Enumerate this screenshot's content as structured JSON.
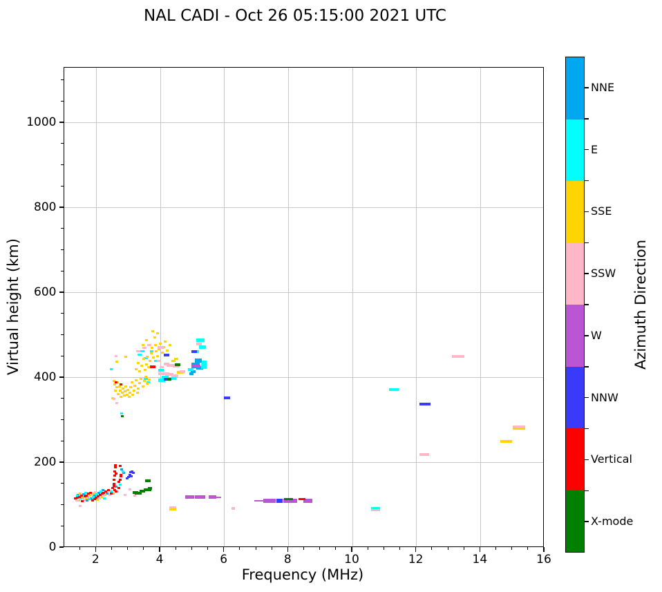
{
  "chart_data": {
    "type": "scatter",
    "title": "NAL CADI - Oct 26 05:15:00 2021 UTC",
    "xlabel": "Frequency (MHz)",
    "ylabel": "Virtual height (km)",
    "xlim": [
      1,
      16
    ],
    "ylim": [
      0,
      1130
    ],
    "xticks": [
      2,
      4,
      6,
      8,
      10,
      12,
      14,
      16
    ],
    "yticks": [
      0,
      200,
      400,
      600,
      800,
      1000
    ],
    "x_minor_step": 0.5,
    "y_minor_step": 50,
    "grid": true,
    "grid_color": "#c6c6c6",
    "point_format": "[freq_MHz, height_km, marker_w_px(optional,default 4), marker_h_px(optional,default 3)]",
    "colorbar": {
      "label": "Azimuth Direction",
      "categories": [
        {
          "name": "NNE",
          "color": "#00A8F0"
        },
        {
          "name": "E",
          "color": "#00FFFF"
        },
        {
          "name": "SSE",
          "color": "#FFD400"
        },
        {
          "name": "SSW",
          "color": "#FFB6C6"
        },
        {
          "name": "W",
          "color": "#BA55D3"
        },
        {
          "name": "NNW",
          "color": "#3A3AFB"
        },
        {
          "name": "Vertical",
          "color": "#FF0000"
        },
        {
          "name": "X-mode",
          "color": "#008000"
        }
      ]
    },
    "series": [
      {
        "name": "NNE",
        "color": "#00A8F0",
        "points": [
          [
            1.44,
            125
          ],
          [
            1.6,
            126
          ],
          [
            1.72,
            111
          ],
          [
            1.84,
            117
          ],
          [
            1.96,
            123
          ],
          [
            2.08,
            129
          ],
          [
            2.2,
            135
          ],
          [
            2.34,
            128
          ],
          [
            2.62,
            144
          ],
          [
            2.8,
            185
          ],
          [
            2.86,
            176
          ],
          [
            5.1,
            430,
            12,
            8
          ],
          [
            5.18,
            441,
            10,
            6
          ],
          [
            5.24,
            424,
            10,
            5
          ],
          [
            5.02,
            415,
            7,
            4
          ],
          [
            4.98,
            409,
            6,
            4
          ]
        ]
      },
      {
        "name": "E",
        "color": "#00FFFF",
        "points": [
          [
            1.4,
            122
          ],
          [
            1.52,
            116
          ],
          [
            1.66,
            129
          ],
          [
            1.78,
            114
          ],
          [
            1.9,
            120
          ],
          [
            2.02,
            126
          ],
          [
            2.14,
            132
          ],
          [
            2.26,
            117
          ],
          [
            2.46,
            132
          ],
          [
            2.74,
            148
          ],
          [
            2.83,
            180
          ],
          [
            2.47,
            420
          ],
          [
            2.8,
            317
          ],
          [
            3.55,
            398,
            6,
            3
          ],
          [
            3.62,
            390,
            5,
            3
          ],
          [
            3.35,
            455,
            6,
            3
          ],
          [
            3.44,
            462,
            6,
            3
          ],
          [
            3.55,
            446,
            6,
            3
          ],
          [
            3.72,
            462,
            5,
            3
          ],
          [
            3.86,
            440,
            6,
            3
          ],
          [
            4.02,
            418,
            8,
            4
          ],
          [
            4.05,
            394,
            10,
            5
          ],
          [
            4.16,
            402,
            10,
            4
          ],
          [
            4.4,
            398,
            8,
            4
          ],
          [
            5.25,
            488,
            12,
            5
          ],
          [
            5.32,
            473,
            10,
            5
          ],
          [
            5.15,
            462,
            6,
            4
          ],
          [
            5.36,
            430,
            8,
            5
          ],
          [
            4.94,
            420,
            8,
            4
          ],
          [
            5.35,
            425,
            8,
            5
          ],
          [
            5.38,
            437,
            7,
            4
          ],
          [
            10.72,
            93,
            13,
            4
          ],
          [
            11.3,
            372,
            14,
            4
          ]
        ]
      },
      {
        "name": "SSE",
        "color": "#FFD400",
        "points": [
          [
            1.46,
            111
          ],
          [
            1.5,
            127
          ],
          [
            1.58,
            118
          ],
          [
            1.68,
            116
          ],
          [
            1.8,
            122
          ],
          [
            1.92,
            128
          ],
          [
            2.04,
            113
          ],
          [
            2.16,
            119
          ],
          [
            2.28,
            125
          ],
          [
            2.54,
            128
          ],
          [
            2.52,
            352
          ],
          [
            2.56,
            392
          ],
          [
            2.58,
            385
          ],
          [
            2.6,
            370
          ],
          [
            2.63,
            378
          ],
          [
            2.66,
            390
          ],
          [
            2.69,
            362
          ],
          [
            2.72,
            380
          ],
          [
            2.75,
            370
          ],
          [
            2.78,
            356
          ],
          [
            2.81,
            365
          ],
          [
            2.84,
            375
          ],
          [
            2.87,
            358
          ],
          [
            2.9,
            368
          ],
          [
            2.93,
            380
          ],
          [
            2.96,
            360
          ],
          [
            2.99,
            372
          ],
          [
            3.02,
            355
          ],
          [
            3.05,
            365
          ],
          [
            3.08,
            378
          ],
          [
            3.11,
            390
          ],
          [
            3.14,
            360
          ],
          [
            3.17,
            370
          ],
          [
            3.2,
            382
          ],
          [
            3.24,
            394
          ],
          [
            3.28,
            365
          ],
          [
            3.32,
            375
          ],
          [
            3.36,
            388
          ],
          [
            3.4,
            398
          ],
          [
            3.45,
            380
          ],
          [
            3.5,
            392
          ],
          [
            3.55,
            402
          ],
          [
            3.6,
            386
          ],
          [
            3.66,
            396
          ],
          [
            2.65,
            438
          ],
          [
            2.93,
            450
          ],
          [
            3.25,
            420
          ],
          [
            3.3,
            435
          ],
          [
            3.36,
            415
          ],
          [
            3.42,
            428
          ],
          [
            3.48,
            445
          ],
          [
            3.52,
            418
          ],
          [
            3.56,
            432
          ],
          [
            3.6,
            450
          ],
          [
            3.64,
            425
          ],
          [
            3.68,
            440
          ],
          [
            3.72,
            458
          ],
          [
            3.74,
            470
          ],
          [
            3.78,
            448
          ],
          [
            3.76,
            510
          ],
          [
            3.82,
            495
          ],
          [
            3.84,
            478
          ],
          [
            3.88,
            462
          ],
          [
            3.92,
            452
          ],
          [
            3.96,
            468
          ],
          [
            4.0,
            480
          ],
          [
            4.06,
            460
          ],
          [
            4.1,
            472
          ],
          [
            4.16,
            485
          ],
          [
            4.22,
            465
          ],
          [
            3.92,
            505
          ],
          [
            3.56,
            488
          ],
          [
            3.46,
            478
          ],
          [
            4.3,
            478
          ],
          [
            4.42,
            440,
            6,
            3
          ],
          [
            4.5,
            445,
            6,
            3
          ],
          [
            4.62,
            413,
            10,
            4
          ],
          [
            4.38,
            91,
            10,
            4
          ],
          [
            14.8,
            250,
            17,
            4
          ],
          [
            15.2,
            281,
            18,
            4
          ]
        ]
      },
      {
        "name": "SSW",
        "color": "#FFB6C6",
        "points": [
          [
            1.38,
            112
          ],
          [
            1.5,
            99
          ],
          [
            1.62,
            113
          ],
          [
            1.74,
            119
          ],
          [
            1.86,
            124
          ],
          [
            1.98,
            131
          ],
          [
            2.1,
            116
          ],
          [
            2.22,
            122
          ],
          [
            2.42,
            124
          ],
          [
            2.66,
            132
          ],
          [
            2.9,
            125
          ],
          [
            3.05,
            138
          ],
          [
            3.2,
            122
          ],
          [
            2.55,
            350
          ],
          [
            2.62,
            452
          ],
          [
            2.65,
            340
          ],
          [
            3.3,
            462,
            6,
            3
          ],
          [
            3.5,
            470,
            6,
            3
          ],
          [
            3.65,
            478,
            6,
            3
          ],
          [
            3.95,
            440,
            6,
            3
          ],
          [
            4.02,
            472,
            10,
            4
          ],
          [
            4.05,
            425,
            6,
            3
          ],
          [
            4.1,
            410,
            16,
            4
          ],
          [
            4.2,
            432,
            8,
            4
          ],
          [
            4.28,
            408,
            12,
            4
          ],
          [
            4.35,
            430,
            14,
            4
          ],
          [
            4.45,
            405,
            10,
            4
          ],
          [
            4.5,
            428,
            10,
            4
          ],
          [
            4.7,
            415,
            8,
            4
          ],
          [
            5.2,
            480,
            8,
            4
          ],
          [
            4.38,
            95,
            10,
            3
          ],
          [
            6.28,
            92,
            5,
            4
          ],
          [
            10.72,
            89,
            13,
            3
          ],
          [
            12.25,
            220,
            14,
            4
          ],
          [
            13.3,
            450,
            18,
            4
          ],
          [
            15.2,
            285,
            18,
            3
          ]
        ]
      },
      {
        "name": "W",
        "color": "#BA55D3",
        "points": [
          [
            4.92,
            119,
            13,
            5
          ],
          [
            5.25,
            119,
            15,
            5
          ],
          [
            5.63,
            119,
            11,
            5
          ],
          [
            5.82,
            118,
            8,
            2
          ],
          [
            7.07,
            110,
            13,
            2
          ],
          [
            7.42,
            110,
            18,
            6
          ],
          [
            8.05,
            110,
            20,
            6
          ],
          [
            8.6,
            110,
            13,
            6
          ],
          [
            5.12,
            428,
            12,
            3
          ]
        ]
      },
      {
        "name": "NNW",
        "color": "#3A3AFB",
        "points": [
          [
            2.97,
            163
          ],
          [
            3.01,
            166
          ],
          [
            3.05,
            172
          ],
          [
            3.08,
            178
          ],
          [
            3.12,
            180
          ],
          [
            3.15,
            176
          ],
          [
            3.1,
            168
          ],
          [
            4.18,
            397,
            6,
            4
          ],
          [
            4.2,
            454,
            8,
            4
          ],
          [
            5.05,
            462,
            8,
            4
          ],
          [
            6.08,
            353,
            9,
            4
          ],
          [
            7.72,
            110,
            9,
            6
          ],
          [
            12.27,
            338,
            16,
            4
          ]
        ]
      },
      {
        "name": "Vertical",
        "color": "#FF0000",
        "points": [
          [
            1.35,
            116
          ],
          [
            1.42,
            118
          ],
          [
            1.48,
            120
          ],
          [
            1.54,
            122
          ],
          [
            1.56,
            109
          ],
          [
            1.64,
            121
          ],
          [
            1.7,
            123
          ],
          [
            1.76,
            127
          ],
          [
            1.82,
            130
          ],
          [
            1.88,
            112
          ],
          [
            1.94,
            115
          ],
          [
            2.0,
            118
          ],
          [
            2.06,
            121
          ],
          [
            2.12,
            124
          ],
          [
            2.18,
            127
          ],
          [
            2.24,
            130
          ],
          [
            2.3,
            133
          ],
          [
            2.38,
            136
          ],
          [
            2.46,
            128
          ],
          [
            2.5,
            140
          ],
          [
            2.58,
            136
          ],
          [
            2.62,
            132
          ],
          [
            2.7,
            140
          ],
          [
            2.55,
            150
          ],
          [
            2.56,
            145
          ],
          [
            2.56,
            160
          ],
          [
            2.57,
            170
          ],
          [
            2.58,
            180
          ],
          [
            2.59,
            190
          ],
          [
            2.6,
            195
          ],
          [
            2.62,
            175
          ],
          [
            2.7,
            155
          ],
          [
            2.74,
            160
          ],
          [
            2.75,
            192
          ],
          [
            2.76,
            168
          ],
          [
            2.78,
            172
          ],
          [
            2.62,
            390
          ],
          [
            2.77,
            385
          ],
          [
            3.76,
            426,
            8,
            4
          ],
          [
            8.42,
            114,
            10,
            3
          ]
        ]
      },
      {
        "name": "X-mode",
        "color": "#008000",
        "points": [
          [
            2.82,
            310
          ],
          [
            3.22,
            130,
            8,
            4
          ],
          [
            3.32,
            128,
            10,
            4
          ],
          [
            3.44,
            133,
            8,
            4
          ],
          [
            3.55,
            137,
            6,
            4
          ],
          [
            3.62,
            158,
            8,
            4
          ],
          [
            3.64,
            137,
            8,
            4
          ],
          [
            3.68,
            140,
            6,
            4
          ],
          [
            4.28,
            396,
            6,
            4
          ],
          [
            4.55,
            431,
            8,
            4
          ],
          [
            8.0,
            114,
            13,
            3
          ]
        ]
      }
    ]
  }
}
